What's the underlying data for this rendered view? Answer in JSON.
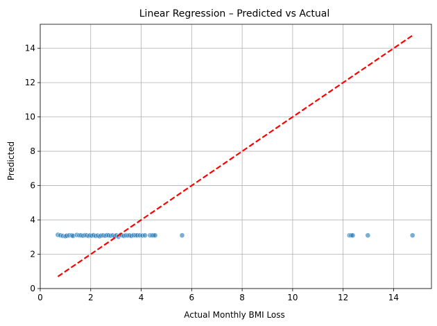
{
  "chart_data": {
    "type": "scatter",
    "title": "Linear Regression – Predicted vs Actual",
    "xlabel": "Actual Monthly BMI Loss",
    "ylabel": "Predicted",
    "xlim": [
      0,
      15.5
    ],
    "ylim": [
      0,
      15.4
    ],
    "xticks": [
      0,
      2,
      4,
      6,
      8,
      10,
      12,
      14
    ],
    "yticks": [
      0,
      2,
      4,
      6,
      8,
      10,
      12,
      14
    ],
    "grid": true,
    "series": [
      {
        "kind": "scatter",
        "color": "#1f77b4",
        "x": [
          0.7,
          0.8,
          0.9,
          1.0,
          1.05,
          1.15,
          1.25,
          1.3,
          1.45,
          1.55,
          1.62,
          1.7,
          1.78,
          1.85,
          1.92,
          1.98,
          2.05,
          2.12,
          2.2,
          2.28,
          2.35,
          2.42,
          2.5,
          2.58,
          2.65,
          2.72,
          2.8,
          2.88,
          2.95,
          3.02,
          3.1,
          3.18,
          3.25,
          3.32,
          3.4,
          3.48,
          3.55,
          3.62,
          3.7,
          3.78,
          3.85,
          3.95,
          4.05,
          4.15,
          4.35,
          4.42,
          4.48,
          4.55,
          5.62,
          12.25,
          12.32,
          12.38,
          12.98,
          14.75
        ],
        "y": [
          3.13,
          3.1,
          3.07,
          3.05,
          3.08,
          3.1,
          3.1,
          3.07,
          3.12,
          3.1,
          3.1,
          3.08,
          3.11,
          3.1,
          3.07,
          3.1,
          3.08,
          3.11,
          3.07,
          3.09,
          3.05,
          3.09,
          3.1,
          3.08,
          3.11,
          3.1,
          3.08,
          3.1,
          3.06,
          3.1,
          3.02,
          3.12,
          3.1,
          3.07,
          3.1,
          3.09,
          3.1,
          3.07,
          3.11,
          3.1,
          3.1,
          3.1,
          3.09,
          3.1,
          3.1,
          3.1,
          3.1,
          3.1,
          3.1,
          3.1,
          3.1,
          3.1,
          3.1,
          3.1
        ]
      },
      {
        "kind": "line",
        "style": "dashed",
        "color": "#ff0000",
        "x": [
          0.7,
          14.75
        ],
        "y": [
          0.7,
          14.75
        ]
      }
    ]
  }
}
